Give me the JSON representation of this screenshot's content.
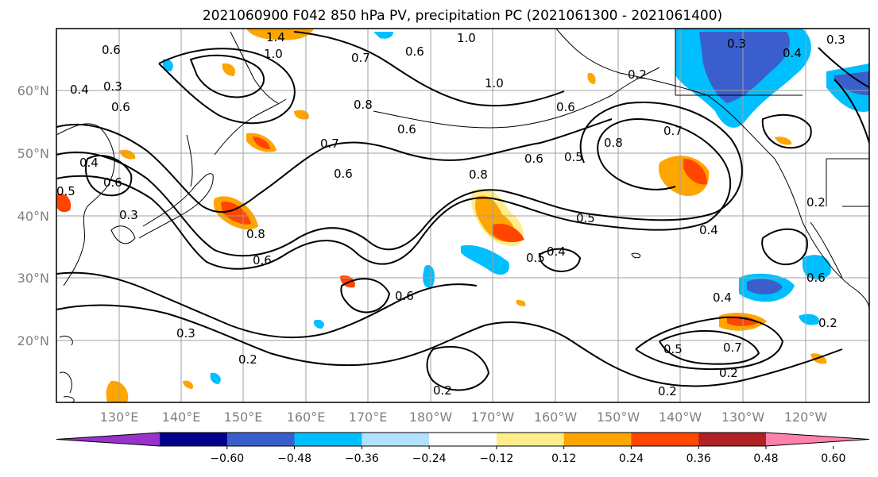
{
  "title": "2021060900 F042 850 hPa PV, precipitation PC (2021061300 - 2021061400)",
  "map": {
    "lon_labels": [
      "130°E",
      "140°E",
      "150°E",
      "160°E",
      "170°E",
      "180°W",
      "170°W",
      "160°W",
      "150°W",
      "140°W",
      "130°W",
      "120°W"
    ],
    "lat_labels": [
      "60°N",
      "50°N",
      "40°N",
      "30°N",
      "20°N"
    ],
    "grid": true
  },
  "contour_labels": [
    "1.0",
    "1.4",
    "1.0",
    "0.7",
    "0.6",
    "1.0",
    "0.6",
    "0.3",
    "0.2",
    "0.3",
    "0.4",
    "0.4",
    "0.3",
    "0.6",
    "0.8",
    "0.6",
    "0.6",
    "0.7",
    "0.5",
    "0.8",
    "0.7",
    "0.6",
    "0.4",
    "0.6",
    "0.3",
    "0.8",
    "0.6",
    "0.5",
    "0.4",
    "0.8",
    "0.6",
    "0.5",
    "0.4",
    "0.4",
    "0.6",
    "0.6",
    "0.7",
    "0.5",
    "0.3",
    "0.2",
    "0.2",
    "0.2",
    "0.2",
    "0.2",
    "0.2",
    "0.5"
  ],
  "colorbar": {
    "colors": [
      "#9932cc",
      "#00008b",
      "#3a5fcd",
      "#00bfff",
      "#b0e2ff",
      "#ffffff",
      "#ffec8b",
      "#ffa500",
      "#ff4500",
      "#b22222",
      "#ff82ab"
    ],
    "tick_labels": [
      "−0.60",
      "−0.48",
      "−0.36",
      "−0.24",
      "−0.12",
      "0.12",
      "0.24",
      "0.36",
      "0.48",
      "0.60"
    ]
  }
}
